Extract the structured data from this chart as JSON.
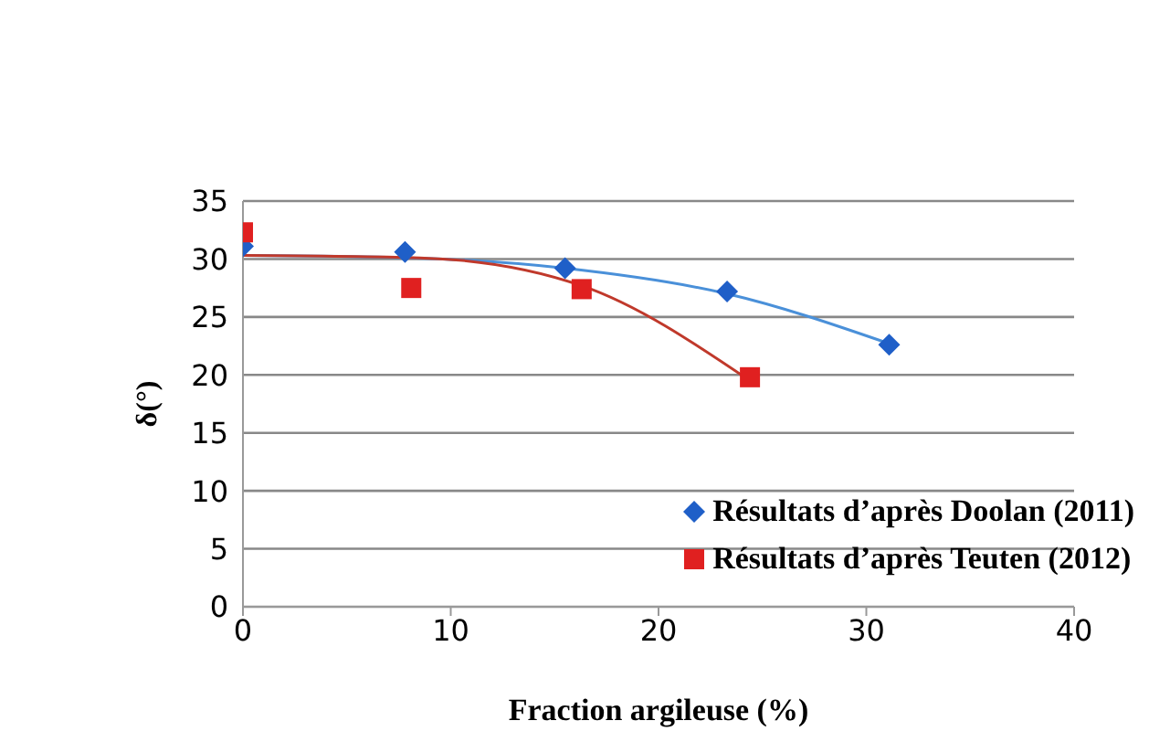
{
  "chart_data": {
    "type": "scatter",
    "xlabel": "Fraction argileuse (%)",
    "ylabel": "δ(°)",
    "xlim": [
      0,
      40
    ],
    "xticks": [
      0,
      10,
      20,
      30,
      40
    ],
    "ylim": [
      0,
      35
    ],
    "yticks": [
      0,
      5,
      10,
      15,
      20,
      25,
      30,
      35
    ],
    "grid": "y",
    "legend": "bottom right",
    "series": [
      {
        "name": "Résultats d’après Doolan (2011)",
        "type": "scatter",
        "marker": "diamond",
        "color": "#1f5fc8",
        "x": [
          0,
          7.8,
          15.5,
          23.3,
          31.1
        ],
        "values": [
          31.1,
          30.6,
          29.2,
          27.2,
          22.6
        ]
      },
      {
        "name": "Résultats d’après Teuten (2012)",
        "type": "scatter",
        "marker": "square",
        "color": "#e02020",
        "x": [
          0,
          8.1,
          16.3,
          24.4
        ],
        "values": [
          32.3,
          27.5,
          27.4,
          19.8
        ]
      },
      {
        "type": "line",
        "color": "#4a90d9",
        "x": [
          0,
          8,
          15.5,
          23.3,
          31.1
        ],
        "values": [
          30.3,
          30.1,
          29.2,
          27.0,
          22.7
        ]
      },
      {
        "type": "line",
        "color": "#c0392b",
        "x": [
          0,
          8.5,
          16.3,
          24.4
        ],
        "values": [
          30.3,
          30.1,
          27.7,
          19.5
        ]
      }
    ]
  }
}
